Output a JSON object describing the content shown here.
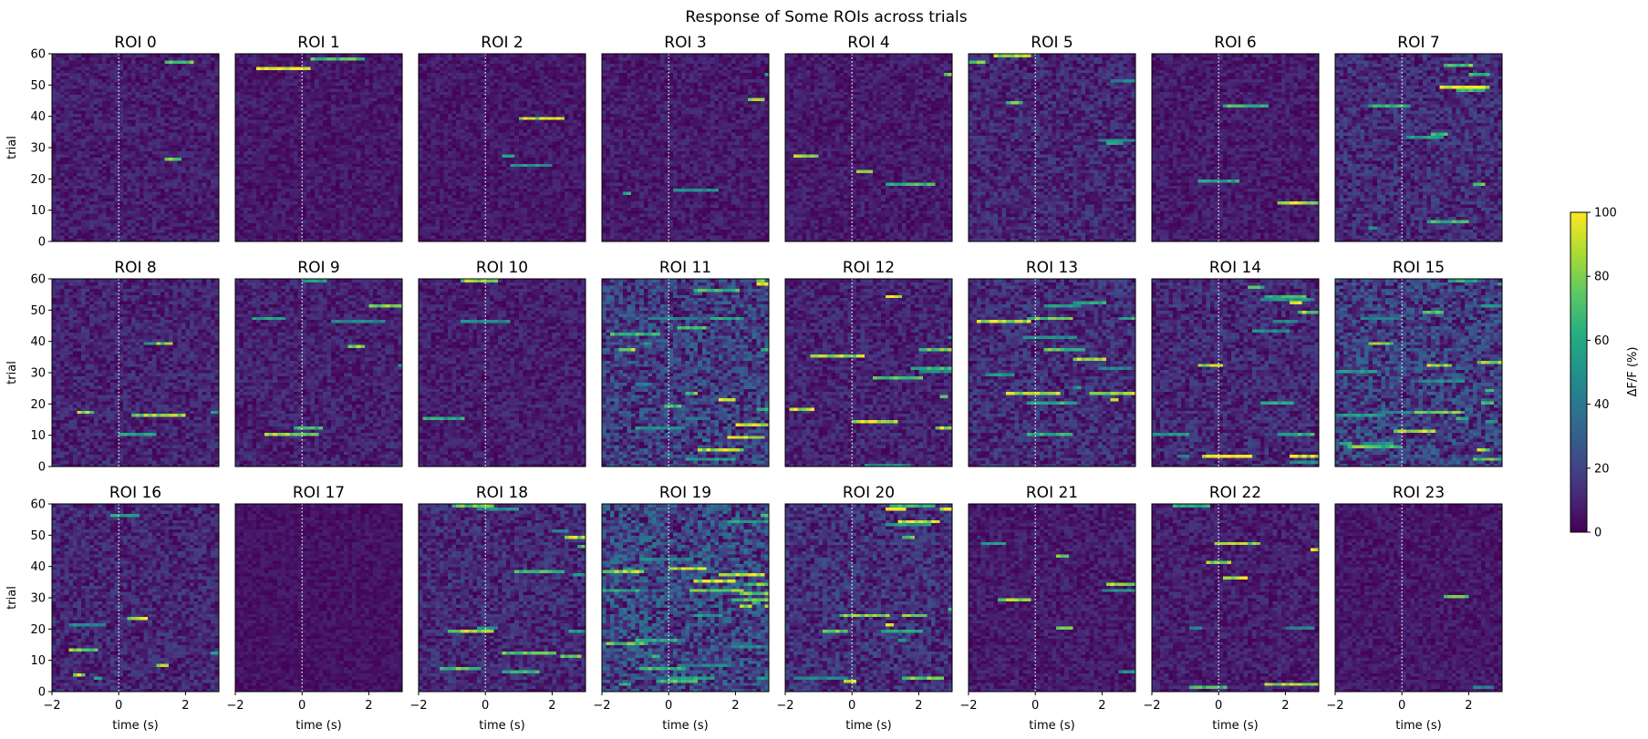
{
  "chart_data": {
    "type": "heatmap",
    "title": "Response of Some ROIs across trials",
    "grid": {
      "rows": 3,
      "cols": 8
    },
    "panels": [
      {
        "title": "ROI 0"
      },
      {
        "title": "ROI 1"
      },
      {
        "title": "ROI 2"
      },
      {
        "title": "ROI 3"
      },
      {
        "title": "ROI 4"
      },
      {
        "title": "ROI 5"
      },
      {
        "title": "ROI 6"
      },
      {
        "title": "ROI 7"
      },
      {
        "title": "ROI 8"
      },
      {
        "title": "ROI 9"
      },
      {
        "title": "ROI 10"
      },
      {
        "title": "ROI 11"
      },
      {
        "title": "ROI 12"
      },
      {
        "title": "ROI 13"
      },
      {
        "title": "ROI 14"
      },
      {
        "title": "ROI 15"
      },
      {
        "title": "ROI 16"
      },
      {
        "title": "ROI 17"
      },
      {
        "title": "ROI 18"
      },
      {
        "title": "ROI 19"
      },
      {
        "title": "ROI 20"
      },
      {
        "title": "ROI 21"
      },
      {
        "title": "ROI 22"
      },
      {
        "title": "ROI 23"
      }
    ],
    "xlabel": "time (s)",
    "ylabel": "trial",
    "xlim": [
      -2,
      3
    ],
    "ylim": [
      0,
      60
    ],
    "xticks": [
      -2,
      0,
      2
    ],
    "xtick_labels": [
      "−2",
      "0",
      "2"
    ],
    "yticks": [
      0,
      10,
      20,
      30,
      40,
      50,
      60
    ],
    "ytick_labels": [
      "0",
      "10",
      "20",
      "30",
      "40",
      "50",
      "60"
    ],
    "stimulus_line_x": 0,
    "n_trials": 60,
    "time_bins": 40,
    "colormap": "viridis",
    "colorbar": {
      "label": "ΔF/F (%)",
      "range": [
        0,
        100
      ],
      "ticks": [
        0,
        20,
        40,
        60,
        80,
        100
      ],
      "tick_labels": [
        "0",
        "20",
        "40",
        "60",
        "80",
        "100"
      ]
    },
    "colors": {
      "low": "#440154",
      "mid": "#21918c",
      "high": "#fde725",
      "stim_line": "#ffffff"
    }
  }
}
